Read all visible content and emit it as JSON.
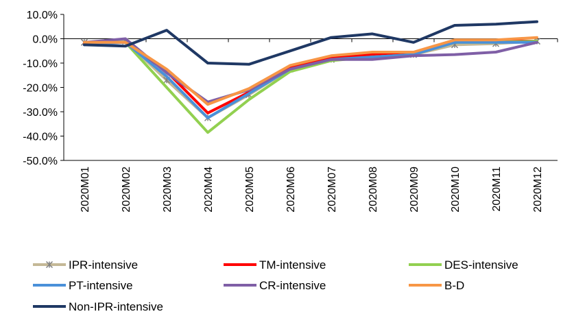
{
  "chart_data": {
    "type": "line",
    "categories": [
      "2020M01",
      "2020M02",
      "2020M03",
      "2020M04",
      "2020M05",
      "2020M06",
      "2020M07",
      "2020M08",
      "2020M09",
      "2020M10",
      "2020M11",
      "2020M12"
    ],
    "y_ticks": [
      "10.0%",
      "0.0%",
      "-10.0%",
      "-20.0%",
      "-30.0%",
      "-40.0%",
      "-50.0%"
    ],
    "ylim": [
      -50,
      10
    ],
    "y_unit": "%",
    "grid": false,
    "legend_position": "bottom",
    "series": [
      {
        "name": "IPR-intensive",
        "color": "#c4b896",
        "marker": "asterisk-x",
        "values": [
          -1.5,
          -1.0,
          -17.0,
          -32.5,
          -23.0,
          -12.5,
          -8.5,
          -7.0,
          -6.5,
          -2.5,
          -2.0,
          -1.0
        ]
      },
      {
        "name": "TM-intensive",
        "color": "#ff0000",
        "values": [
          -2.0,
          -1.5,
          -13.5,
          -30.5,
          -22.0,
          -12.0,
          -8.0,
          -6.5,
          -6.0,
          -1.0,
          -1.0,
          -1.0
        ]
      },
      {
        "name": "DES-intensive",
        "color": "#92d050",
        "values": [
          -1.5,
          -1.5,
          -20.0,
          -38.5,
          -25.0,
          -13.5,
          -9.0,
          -7.5,
          -6.5,
          -1.5,
          -1.5,
          -1.0
        ]
      },
      {
        "name": "PT-intensive",
        "color": "#4a90d9",
        "values": [
          -2.5,
          -1.5,
          -15.5,
          -32.5,
          -22.5,
          -12.5,
          -8.5,
          -7.5,
          -6.5,
          -1.5,
          -1.5,
          -1.5
        ]
      },
      {
        "name": "CR-intensive",
        "color": "#7f5fa6",
        "values": [
          -1.5,
          0.0,
          -14.0,
          -26.0,
          -21.0,
          -12.5,
          -8.5,
          -8.5,
          -7.0,
          -6.5,
          -5.5,
          -1.5
        ]
      },
      {
        "name": "B-D",
        "color": "#f79646",
        "values": [
          -1.5,
          -1.5,
          -12.5,
          -27.0,
          -20.5,
          -11.0,
          -7.0,
          -5.5,
          -5.5,
          -0.5,
          -0.5,
          0.5
        ]
      },
      {
        "name": "Non-IPR-intensive",
        "color": "#1f3864",
        "values": [
          -2.5,
          -3.0,
          3.5,
          -10.0,
          -10.5,
          -5.0,
          0.5,
          2.0,
          -1.5,
          5.5,
          6.0,
          7.0
        ]
      }
    ]
  }
}
